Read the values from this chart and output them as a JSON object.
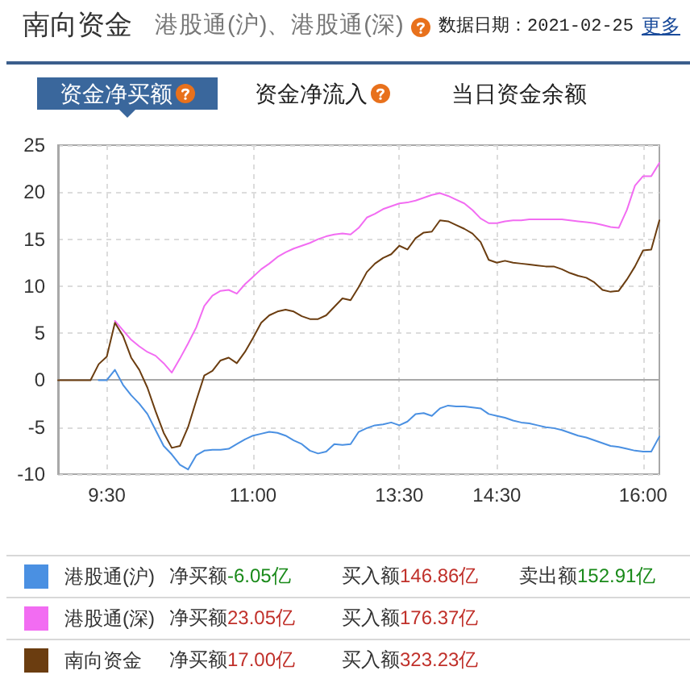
{
  "chart_data": {
    "type": "line",
    "title": "南向资金",
    "subtitle": "港股通(沪)、港股通(深)",
    "annotations": [
      "数据日期：2021-02-25",
      "更多",
      "资金净买额",
      "资金净流入",
      "当日资金余额",
      "净买额-6.05亿",
      "买入额146.86亿",
      "卖出额152.91亿",
      "净买额23.05亿",
      "买入额176.37亿",
      "净买额17.00亿",
      "买入额323.23亿"
    ],
    "categories": [
      null,
      null,
      null,
      null,
      null,
      null,
      "9:30",
      null,
      null,
      null,
      null,
      null,
      null,
      null,
      null,
      null,
      null,
      null,
      null,
      null,
      null,
      null,
      null,
      null,
      "11:00",
      null,
      null,
      null,
      null,
      null,
      null,
      null,
      null,
      null,
      null,
      null,
      null,
      null,
      null,
      null,
      null,
      null,
      "13:30",
      null,
      null,
      null,
      null,
      null,
      null,
      null,
      null,
      null,
      null,
      null,
      "14:30",
      null,
      null,
      null,
      null,
      null,
      null,
      null,
      null,
      null,
      null,
      null,
      null,
      null,
      null,
      null,
      null,
      null,
      "16:00",
      null,
      null
    ],
    "ylim": [
      -10,
      25
    ],
    "yticks": [
      -10,
      -5,
      0,
      5,
      10,
      15,
      20,
      25
    ],
    "grid": true,
    "legend": "bottom",
    "marker": "none",
    "series": [
      {
        "name": "港股通(沪)",
        "color": "#4a90e2",
        "values": [
          null,
          null,
          null,
          null,
          null,
          0,
          0,
          1.1,
          -0.5,
          -1.6,
          -2.5,
          -3.6,
          -5.3,
          -7.0,
          -7.9,
          -9.0,
          -9.5,
          -8.0,
          -7.5,
          -7.4,
          -7.4,
          -7.3,
          -6.8,
          -6.3,
          -5.9,
          -5.7,
          -5.5,
          -5.6,
          -5.9,
          -6.4,
          -6.8,
          -7.5,
          -7.8,
          -7.6,
          -6.8,
          -6.9,
          -6.8,
          -5.5,
          -5.1,
          -4.8,
          -4.7,
          -4.5,
          -4.8,
          -4.4,
          -3.6,
          -3.5,
          -3.8,
          -3.0,
          -2.7,
          -2.8,
          -2.8,
          -2.9,
          -3.0,
          -3.6,
          -3.8,
          -4.0,
          -4.3,
          -4.5,
          -4.6,
          -4.8,
          -5.0,
          -5.1,
          -5.3,
          -5.6,
          -5.9,
          -6.1,
          -6.4,
          -6.7,
          -7.0,
          -7.1,
          -7.3,
          -7.5,
          -7.6,
          -7.6,
          -6.0
        ]
      },
      {
        "name": "港股通(深)",
        "color": "#f26cf2",
        "values": [
          null,
          null,
          null,
          null,
          null,
          null,
          null,
          6.3,
          5.3,
          4.3,
          3.6,
          3.0,
          2.6,
          1.8,
          0.8,
          2.3,
          3.9,
          5.6,
          7.9,
          9.0,
          9.5,
          9.6,
          9.2,
          10.2,
          11.0,
          11.8,
          12.4,
          13.1,
          13.6,
          14.0,
          14.3,
          14.6,
          15.0,
          15.3,
          15.5,
          15.6,
          15.5,
          16.2,
          17.3,
          17.7,
          18.2,
          18.5,
          18.8,
          18.9,
          19.1,
          19.4,
          19.7,
          19.9,
          19.6,
          19.2,
          18.8,
          18.1,
          17.2,
          16.7,
          16.7,
          16.9,
          17.0,
          17.0,
          17.1,
          17.1,
          17.1,
          17.1,
          17.1,
          17.0,
          16.9,
          16.8,
          16.7,
          16.5,
          16.3,
          16.2,
          18.1,
          20.7,
          21.7,
          21.7,
          23.1
        ]
      },
      {
        "name": "南向资金",
        "color": "#6b3d10",
        "values": [
          0,
          0,
          0,
          0,
          0,
          1.7,
          2.5,
          6.1,
          4.7,
          2.4,
          1.1,
          -0.8,
          -3.3,
          -5.6,
          -7.2,
          -7.0,
          -5.0,
          -2.2,
          0.5,
          1.0,
          2.1,
          2.4,
          1.8,
          3.0,
          4.5,
          6.1,
          6.9,
          7.3,
          7.5,
          7.3,
          6.8,
          6.5,
          6.5,
          6.9,
          7.8,
          8.7,
          8.5,
          9.9,
          11.5,
          12.4,
          13.0,
          13.4,
          14.3,
          13.9,
          15.1,
          15.7,
          15.8,
          17.0,
          16.9,
          16.5,
          16.1,
          15.6,
          14.7,
          12.8,
          12.5,
          12.7,
          12.5,
          12.4,
          12.3,
          12.2,
          12.1,
          12.1,
          11.8,
          11.4,
          11.1,
          10.9,
          10.4,
          9.6,
          9.4,
          9.5,
          10.7,
          12.1,
          13.8,
          13.9,
          17.0
        ]
      }
    ]
  }
}
